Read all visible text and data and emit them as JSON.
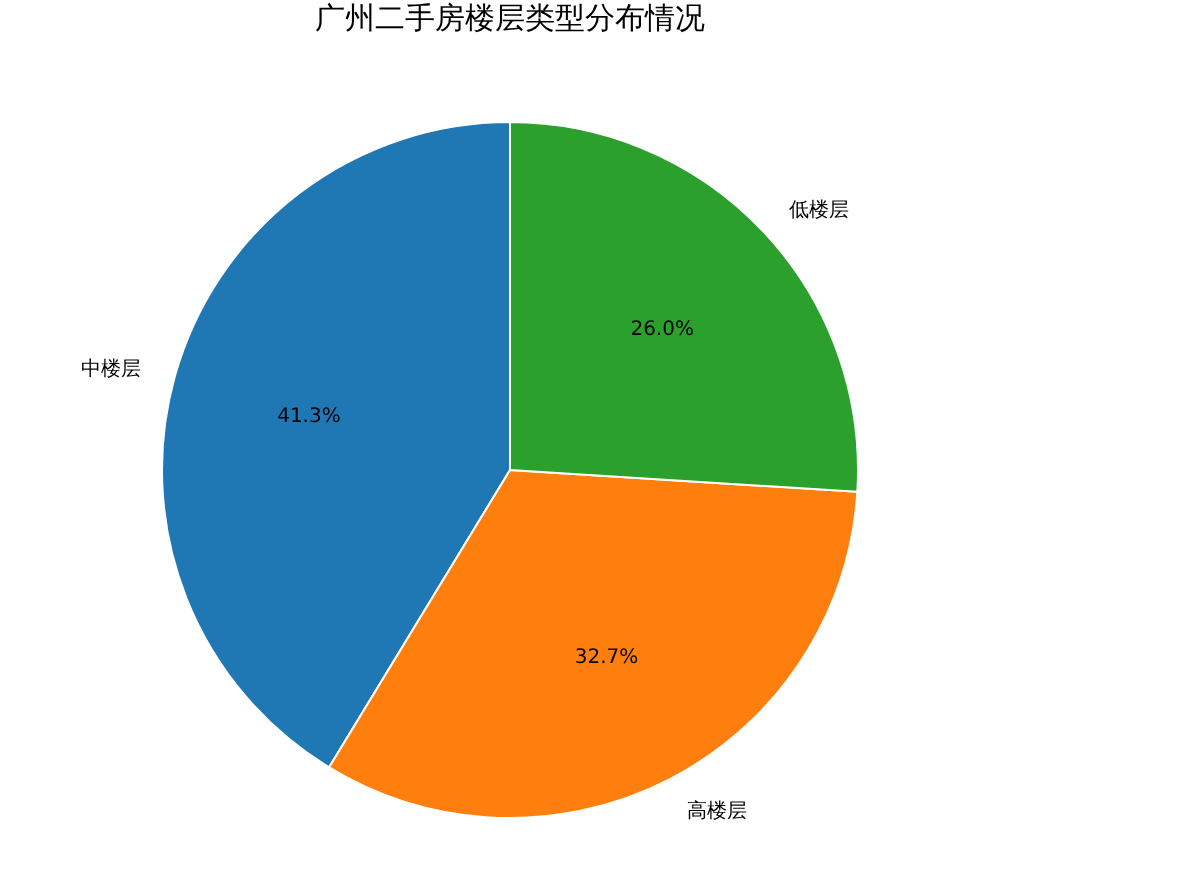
{
  "chart_data": {
    "type": "pie",
    "title": "广州二手房楼层类型分布情况",
    "categories": [
      "中楼层",
      "高楼层",
      "低楼层"
    ],
    "values": [
      41.3,
      32.7,
      26.0
    ],
    "value_labels": [
      "41.3%",
      "32.7%",
      "26.0%"
    ],
    "colors": [
      "#1f77b4",
      "#ff7f0e",
      "#2ca02c"
    ]
  }
}
